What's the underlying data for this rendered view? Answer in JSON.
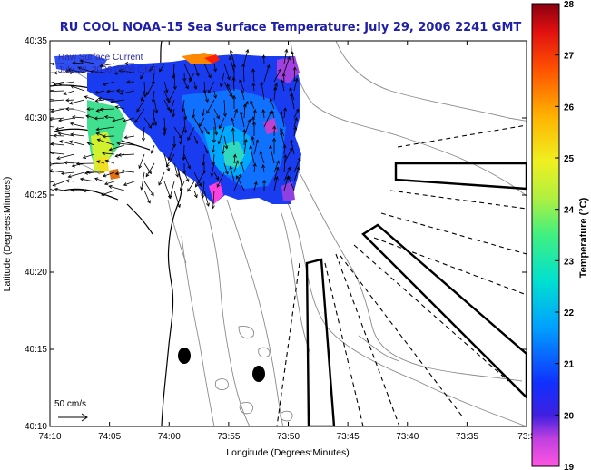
{
  "title": "RU COOL  NOAA–15  Sea Surface Temperature:  July 29, 2006 2241 GMT",
  "legend": {
    "line1": "Raw Surface Current",
    "line2": "July 30, 2006 0000 GMT"
  },
  "scale_label": "50 cm/s",
  "axes": {
    "xlabel": "Longitude (Degrees:Minutes)",
    "ylabel": "Latitude (Degrees:Minutes)",
    "xticks": [
      "74:10",
      "74:05",
      "74:00",
      "73:55",
      "73:50",
      "73:45",
      "73:40",
      "73:35",
      "73:3"
    ],
    "yticks": [
      "40:35",
      "40:30",
      "40:25",
      "40:20",
      "40:15",
      "40:10"
    ]
  },
  "colorbar": {
    "label": "Temperature (°C)",
    "ticks": [
      "28",
      "27",
      "26",
      "25",
      "24",
      "23",
      "22",
      "21",
      "20",
      "19"
    ],
    "range": [
      19,
      28
    ]
  }
}
